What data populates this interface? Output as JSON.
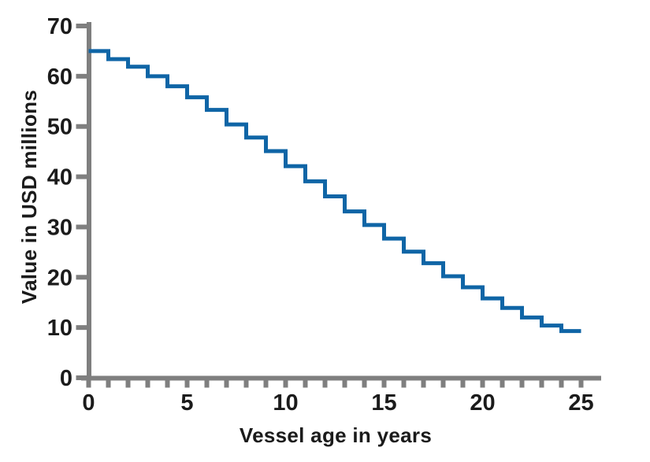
{
  "chart_data": {
    "type": "line",
    "line_style": "step-after",
    "title": "",
    "xlabel": "Vessel age in years",
    "ylabel": "Value in USD millions",
    "ages": [
      0,
      1,
      2,
      3,
      4,
      5,
      6,
      7,
      8,
      9,
      10,
      11,
      12,
      13,
      14,
      15,
      16,
      17,
      18,
      19,
      20,
      21,
      22,
      23,
      24
    ],
    "values": [
      65.0,
      63.4,
      61.9,
      60.0,
      58.0,
      55.8,
      53.3,
      50.4,
      47.8,
      45.1,
      42.1,
      39.1,
      36.1,
      33.1,
      30.4,
      27.7,
      25.1,
      22.8,
      20.2,
      18.0,
      15.8,
      13.9,
      12.0,
      10.4,
      9.3
    ],
    "end_age": 25,
    "xlim": [
      0,
      25
    ],
    "ylim": [
      0,
      70
    ],
    "y_ticks": [
      0,
      10,
      20,
      30,
      40,
      50,
      60,
      70
    ],
    "x_tick_labels": [
      0,
      5,
      10,
      15,
      20,
      25
    ],
    "x_minor_tick_every": 1,
    "grid": false,
    "legend": false,
    "line_color": "#0f65a6",
    "axis_color": "#7f7f7f",
    "text_color": "#1b1b1b",
    "background_color": "#ffffff"
  }
}
